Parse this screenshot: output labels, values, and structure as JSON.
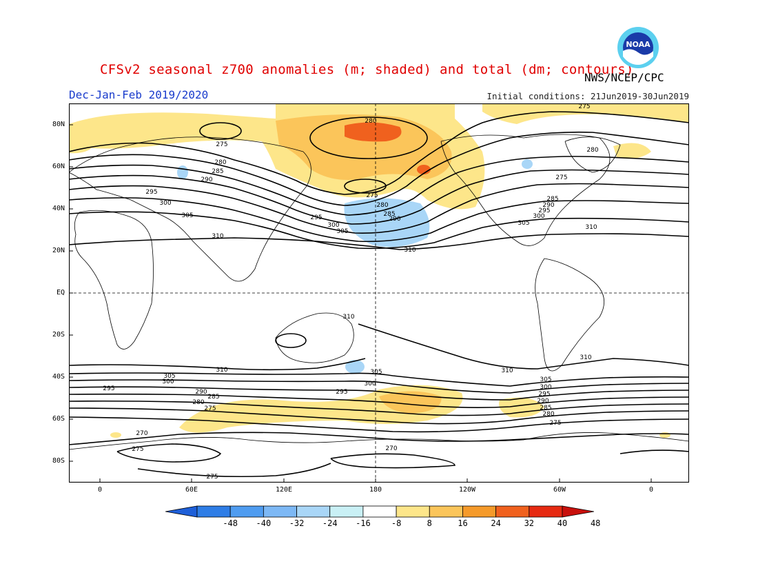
{
  "title": "CFSv2 seasonal z700 anomalies (m; shaded) and total (dm; contours)",
  "season": "Dec-Jan-Feb 2019/2020",
  "initial_conditions": "Initial conditions: 21Jun2019-30Jun2019",
  "agency": "NWS/NCEP/CPC",
  "logo_text": "NOAA",
  "lat_labels": [
    "80N",
    "60N",
    "40N",
    "20N",
    "EQ",
    "20S",
    "40S",
    "60S",
    "80S"
  ],
  "lon_labels": [
    "0",
    "60E",
    "120E",
    "180",
    "120W",
    "60W",
    "0"
  ],
  "colorbar": {
    "ticks": [
      "-48",
      "-40",
      "-32",
      "-24",
      "-16",
      "-8",
      "8",
      "16",
      "24",
      "32",
      "40",
      "48"
    ],
    "colors": [
      "#1e5fd8",
      "#2e7de6",
      "#4f9cf0",
      "#7db8f5",
      "#a9d6f7",
      "#c9f0f5",
      "#ffffff",
      "#fde68a",
      "#fbc55a",
      "#f59a2a",
      "#f0611e",
      "#e62a12",
      "#c8100c"
    ]
  },
  "contour_labels": {
    "n275a": "275",
    "n275b": "275",
    "n275c": "275",
    "n280a": "280",
    "n280b": "280",
    "n280c": "280",
    "n280d": "280",
    "n285a": "285",
    "n285b": "285",
    "n285c": "285",
    "n290a": "290",
    "n290b": "290",
    "n290c": "290",
    "n295a": "295",
    "n295b": "295",
    "n295c": "295",
    "n300a": "300",
    "n300b": "300",
    "n300c": "300",
    "n305a": "305",
    "n305b": "305",
    "n305c": "305",
    "n310a": "310",
    "n310b": "310",
    "n310c": "310",
    "s310a": "310",
    "s310b": "310",
    "s310c": "310",
    "s310d": "310",
    "s305a": "305",
    "s305b": "305",
    "s305c": "305",
    "s300a": "300",
    "s300b": "300",
    "s300c": "300",
    "s295a": "295",
    "s295b": "295",
    "s295c": "295",
    "s290a": "290",
    "s290b": "290",
    "s285a": "285",
    "s285b": "285",
    "s280a": "280",
    "s280b": "280",
    "s275a": "275",
    "s275b": "275",
    "s270a": "270",
    "s270b": "270",
    "s275c": "275",
    "s275d": "275"
  }
}
